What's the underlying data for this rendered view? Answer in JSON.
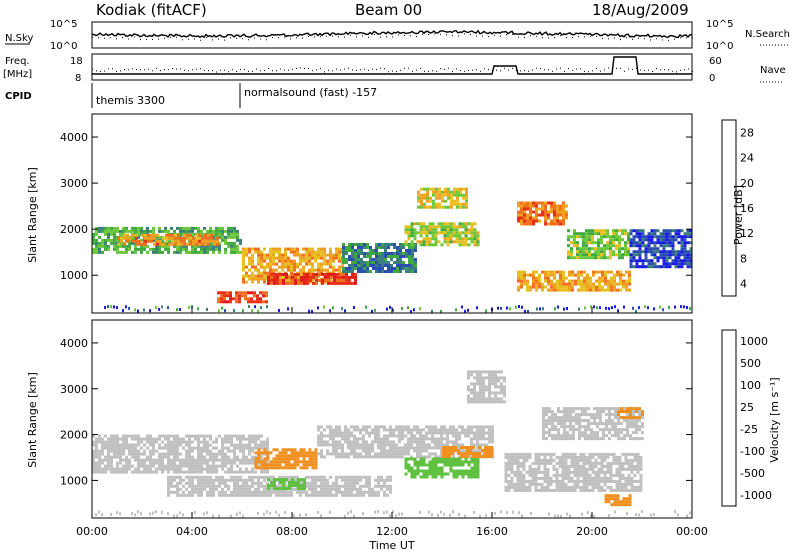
{
  "header": {
    "left": "Kodiak (fitACF)",
    "center": "Beam 00",
    "right": "18/Aug/2009"
  },
  "top_panels": {
    "nsky_label": "N.Sky",
    "nsky_ticks": [
      "10^5",
      "10^0"
    ],
    "nsearch_label": "N.Search",
    "freq_label_1": "Freq.",
    "freq_label_2": "[MHz]",
    "freq_ticks": [
      "18",
      "8"
    ],
    "nave_label": "Nave",
    "nave_ticks": [
      "60",
      "0"
    ],
    "cpid_label": "CPID",
    "cpid_1": "themis 3300",
    "cpid_2": "normalsound (fast) -157"
  },
  "colors": {
    "power": [
      "#1a1ae6",
      "#2a4fb0",
      "#3a7f7a",
      "#3faa3f",
      "#6cc83a",
      "#e6c020",
      "#f0a020",
      "#f07020",
      "#e83018",
      "#e01818"
    ],
    "velocity": [
      "#e01818",
      "#e84020",
      "#f09020",
      "#f0b040",
      "#c0c0c0",
      "#c0c0c0",
      "#60c040",
      "#3a9a5a",
      "#2a5aa0",
      "#2030c0"
    ],
    "gray": "#c0c0c0"
  },
  "chart_data": [
    {
      "type": "heatmap",
      "name": "power",
      "xlabel": "Time UT",
      "ylabel": "Slant Range [km]",
      "colorbar_label": "Power [dB]",
      "colorbar_ticks": [
        "28",
        "24",
        "20",
        "16",
        "12",
        "8",
        "4"
      ],
      "x_ticks": [
        "00:00",
        "04:00",
        "08:00",
        "12:00",
        "16:00",
        "20:00",
        "00:00"
      ],
      "y_ticks": [
        "4000",
        "3000",
        "2000",
        "1000"
      ],
      "xlim": [
        0,
        24
      ],
      "ylim": [
        180,
        4500
      ],
      "regions": [
        {
          "t0": 0.0,
          "t1": 6.0,
          "r0": 1500,
          "r1": 2050,
          "v": 12
        },
        {
          "t0": 1.0,
          "t1": 5.0,
          "r0": 1700,
          "r1": 1900,
          "v": 22
        },
        {
          "t0": 6.0,
          "t1": 10.0,
          "r0": 850,
          "r1": 1600,
          "v": 20
        },
        {
          "t0": 7.0,
          "t1": 10.5,
          "r0": 800,
          "r1": 1050,
          "v": 28
        },
        {
          "t0": 5.0,
          "t1": 7.0,
          "r0": 400,
          "r1": 650,
          "v": 26
        },
        {
          "t0": 10.0,
          "t1": 13.0,
          "r0": 1050,
          "r1": 1700,
          "v": 8
        },
        {
          "t0": 12.5,
          "t1": 15.5,
          "r0": 1650,
          "r1": 2150,
          "v": 16
        },
        {
          "t0": 13.0,
          "t1": 15.0,
          "r0": 2500,
          "r1": 2900,
          "v": 18
        },
        {
          "t0": 17.0,
          "t1": 19.0,
          "r0": 2100,
          "r1": 2600,
          "v": 24
        },
        {
          "t0": 17.0,
          "t1": 21.5,
          "r0": 650,
          "r1": 1100,
          "v": 20
        },
        {
          "t0": 19.0,
          "t1": 21.5,
          "r0": 1400,
          "r1": 2000,
          "v": 14
        },
        {
          "t0": 21.5,
          "t1": 24.0,
          "r0": 1200,
          "r1": 2000,
          "v": 4
        }
      ]
    },
    {
      "type": "heatmap",
      "name": "velocity",
      "xlabel": "Time UT",
      "ylabel": "Slant Range [km]",
      "colorbar_label": "Velocity [m s⁻¹]",
      "colorbar_ticks": [
        "1000",
        "500",
        "100",
        "25",
        "-25",
        "-100",
        "-500",
        "-1000"
      ],
      "x_ticks": [
        "00:00",
        "04:00",
        "08:00",
        "12:00",
        "16:00",
        "20:00",
        "00:00"
      ],
      "y_ticks": [
        "4000",
        "3000",
        "2000",
        "1000"
      ],
      "xlim": [
        0,
        24
      ],
      "ylim": [
        180,
        4500
      ],
      "regions": [
        {
          "t0": 0.0,
          "t1": 7.0,
          "r0": 1200,
          "r1": 2000,
          "v": 0
        },
        {
          "t0": 3.0,
          "t1": 12.0,
          "r0": 700,
          "r1": 1100,
          "v": 0
        },
        {
          "t0": 6.5,
          "t1": 9.0,
          "r0": 1300,
          "r1": 1700,
          "v": -150
        },
        {
          "t0": 7.0,
          "t1": 8.5,
          "r0": 800,
          "r1": 1050,
          "v": 80
        },
        {
          "t0": 9.0,
          "t1": 16.0,
          "r0": 1500,
          "r1": 2200,
          "v": 0
        },
        {
          "t0": 12.5,
          "t1": 15.5,
          "r0": 1100,
          "r1": 1500,
          "v": 80
        },
        {
          "t0": 14.0,
          "t1": 16.0,
          "r0": 1550,
          "r1": 1750,
          "v": -150
        },
        {
          "t0": 16.5,
          "t1": 22.0,
          "r0": 800,
          "r1": 1600,
          "v": 0
        },
        {
          "t0": 18.0,
          "t1": 22.0,
          "r0": 1900,
          "r1": 2600,
          "v": 0
        },
        {
          "t0": 20.5,
          "t1": 21.5,
          "r0": 500,
          "r1": 700,
          "v": -300
        },
        {
          "t0": 21.0,
          "t1": 22.0,
          "r0": 2400,
          "r1": 2600,
          "v": -150
        },
        {
          "t0": 15.0,
          "t1": 16.5,
          "r0": 2700,
          "r1": 3400,
          "v": 0
        }
      ]
    }
  ]
}
